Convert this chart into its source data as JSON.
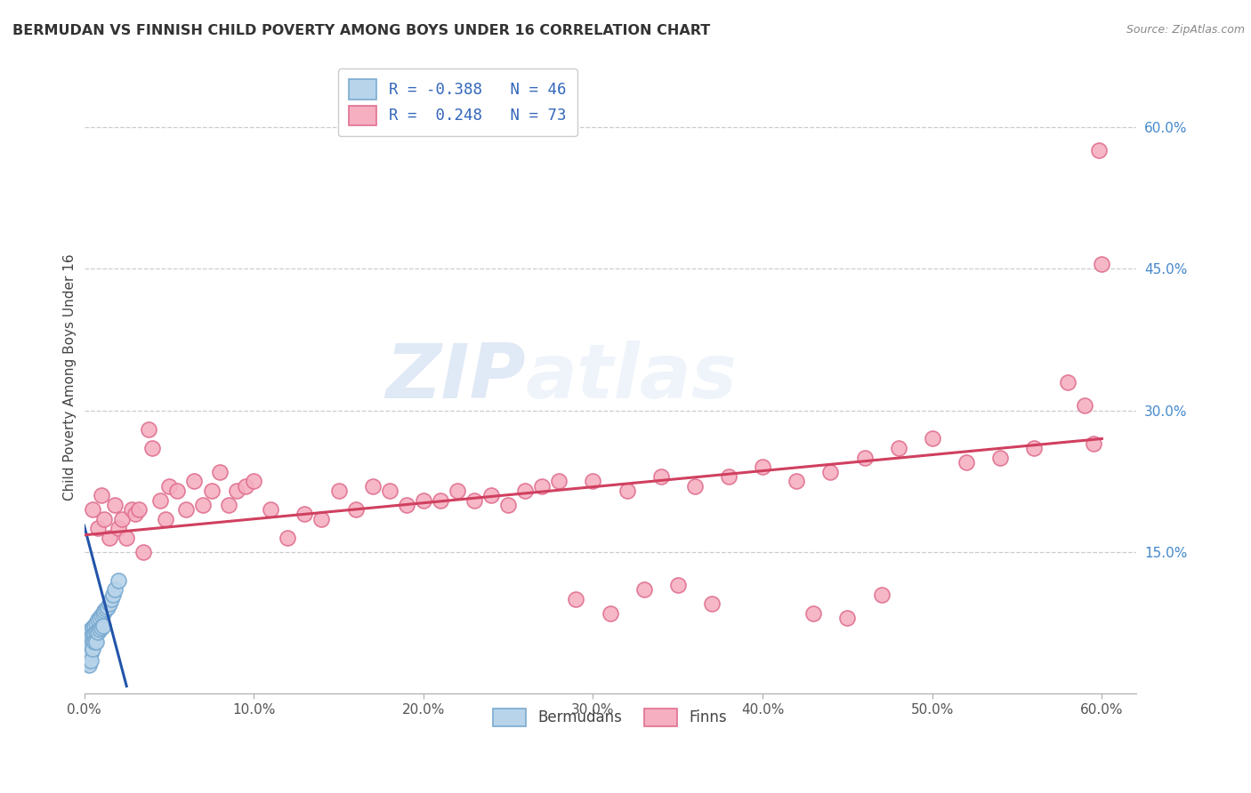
{
  "title": "BERMUDAN VS FINNISH CHILD POVERTY AMONG BOYS UNDER 16 CORRELATION CHART",
  "source": "Source: ZipAtlas.com",
  "ylabel": "Child Poverty Among Boys Under 16",
  "xlim": [
    0.0,
    0.62
  ],
  "ylim": [
    0.0,
    0.67
  ],
  "xticks": [
    0.0,
    0.1,
    0.2,
    0.3,
    0.4,
    0.5,
    0.6
  ],
  "xticklabels": [
    "0.0%",
    "10.0%",
    "20.0%",
    "30.0%",
    "40.0%",
    "50.0%",
    "60.0%"
  ],
  "yticks_right": [
    0.15,
    0.3,
    0.45,
    0.6
  ],
  "ytick_right_labels": [
    "15.0%",
    "30.0%",
    "45.0%",
    "60.0%"
  ],
  "bermudans_color": "#b8d4ea",
  "finns_color": "#f5afc0",
  "bermudans_edge": "#7aaad0",
  "finns_edge": "#e07090",
  "trend_blue": "#2255aa",
  "trend_pink": "#d04060",
  "legend_R_blue": "-0.388",
  "legend_N_blue": "46",
  "legend_R_pink": "0.248",
  "legend_N_pink": "73",
  "watermark_zip": "ZIP",
  "watermark_atlas": "atlas",
  "bermudans_x": [
    0.001,
    0.001,
    0.001,
    0.001,
    0.002,
    0.002,
    0.002,
    0.002,
    0.002,
    0.003,
    0.003,
    0.003,
    0.003,
    0.003,
    0.003,
    0.004,
    0.004,
    0.004,
    0.004,
    0.004,
    0.005,
    0.005,
    0.005,
    0.005,
    0.006,
    0.006,
    0.006,
    0.007,
    0.007,
    0.007,
    0.008,
    0.008,
    0.009,
    0.009,
    0.01,
    0.01,
    0.011,
    0.011,
    0.012,
    0.013,
    0.014,
    0.015,
    0.016,
    0.017,
    0.018,
    0.02
  ],
  "bermudans_y": [
    0.05,
    0.045,
    0.038,
    0.032,
    0.06,
    0.055,
    0.048,
    0.042,
    0.035,
    0.065,
    0.058,
    0.052,
    0.045,
    0.038,
    0.03,
    0.068,
    0.06,
    0.052,
    0.043,
    0.035,
    0.07,
    0.062,
    0.055,
    0.047,
    0.072,
    0.063,
    0.055,
    0.075,
    0.065,
    0.055,
    0.078,
    0.065,
    0.08,
    0.068,
    0.083,
    0.07,
    0.085,
    0.072,
    0.088,
    0.09,
    0.092,
    0.095,
    0.1,
    0.105,
    0.11,
    0.12
  ],
  "finns_x": [
    0.005,
    0.008,
    0.01,
    0.012,
    0.015,
    0.018,
    0.02,
    0.022,
    0.025,
    0.028,
    0.03,
    0.032,
    0.035,
    0.038,
    0.04,
    0.045,
    0.048,
    0.05,
    0.055,
    0.06,
    0.065,
    0.07,
    0.075,
    0.08,
    0.085,
    0.09,
    0.095,
    0.1,
    0.11,
    0.12,
    0.13,
    0.14,
    0.15,
    0.16,
    0.17,
    0.18,
    0.19,
    0.2,
    0.21,
    0.22,
    0.23,
    0.24,
    0.25,
    0.26,
    0.27,
    0.28,
    0.3,
    0.32,
    0.34,
    0.36,
    0.38,
    0.4,
    0.42,
    0.44,
    0.46,
    0.48,
    0.5,
    0.52,
    0.54,
    0.56,
    0.58,
    0.59,
    0.595,
    0.598,
    0.6,
    0.35,
    0.37,
    0.29,
    0.31,
    0.43,
    0.45,
    0.47,
    0.33
  ],
  "finns_y": [
    0.195,
    0.175,
    0.21,
    0.185,
    0.165,
    0.2,
    0.175,
    0.185,
    0.165,
    0.195,
    0.19,
    0.195,
    0.15,
    0.28,
    0.26,
    0.205,
    0.185,
    0.22,
    0.215,
    0.195,
    0.225,
    0.2,
    0.215,
    0.235,
    0.2,
    0.215,
    0.22,
    0.225,
    0.195,
    0.165,
    0.19,
    0.185,
    0.215,
    0.195,
    0.22,
    0.215,
    0.2,
    0.205,
    0.205,
    0.215,
    0.205,
    0.21,
    0.2,
    0.215,
    0.22,
    0.225,
    0.225,
    0.215,
    0.23,
    0.22,
    0.23,
    0.24,
    0.225,
    0.235,
    0.25,
    0.26,
    0.27,
    0.245,
    0.25,
    0.26,
    0.33,
    0.305,
    0.265,
    0.575,
    0.455,
    0.115,
    0.095,
    0.1,
    0.085,
    0.085,
    0.08,
    0.105,
    0.11
  ],
  "trend_blue_x0": 0.0,
  "trend_blue_y0": 0.178,
  "trend_blue_x1": 0.025,
  "trend_blue_y1": 0.008,
  "trend_pink_x0": 0.0,
  "trend_pink_y0": 0.168,
  "trend_pink_x1": 0.6,
  "trend_pink_y1": 0.27
}
